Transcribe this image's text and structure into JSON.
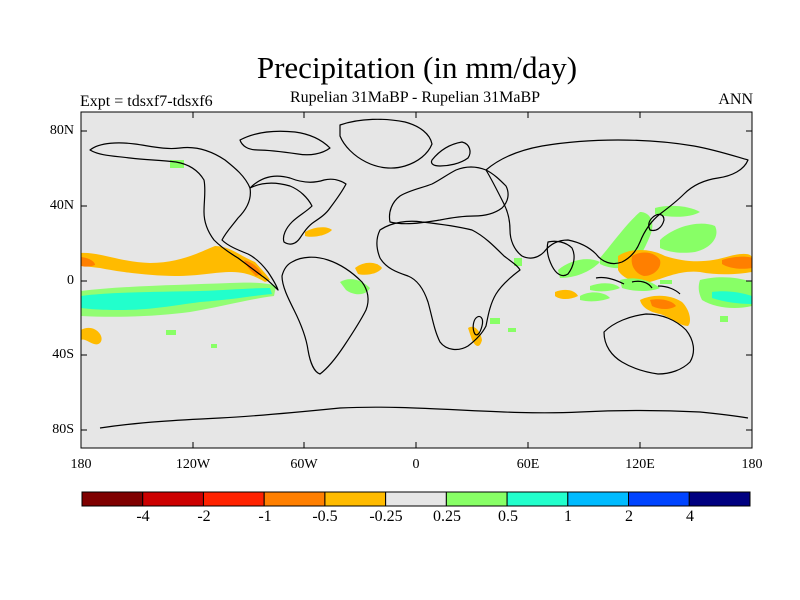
{
  "title": "Precipitation (in mm/day)",
  "subtitle": "Rupelian  31MaBP - Rupelian  31MaBP",
  "left_label": "Expt = tdsxf7-tdsxf6",
  "right_label": "ANN",
  "lat_ticks": [
    "80N",
    "40N",
    "0",
    "40S",
    "80S"
  ],
  "lon_ticks": [
    "180",
    "120W",
    "60W",
    "0",
    "60E",
    "120E",
    "180"
  ],
  "colorbar": {
    "colors": [
      "#7f0000",
      "#cc0000",
      "#ff2200",
      "#ff7f00",
      "#ffbb00",
      "#e6e6e6",
      "#88ff66",
      "#22ffcc",
      "#00bbff",
      "#0044ff",
      "#000080"
    ],
    "labels": [
      "-4",
      "-2",
      "-1",
      "-0.5",
      "-0.25",
      "0.25",
      "0.5",
      "1",
      "2",
      "4"
    ]
  }
}
